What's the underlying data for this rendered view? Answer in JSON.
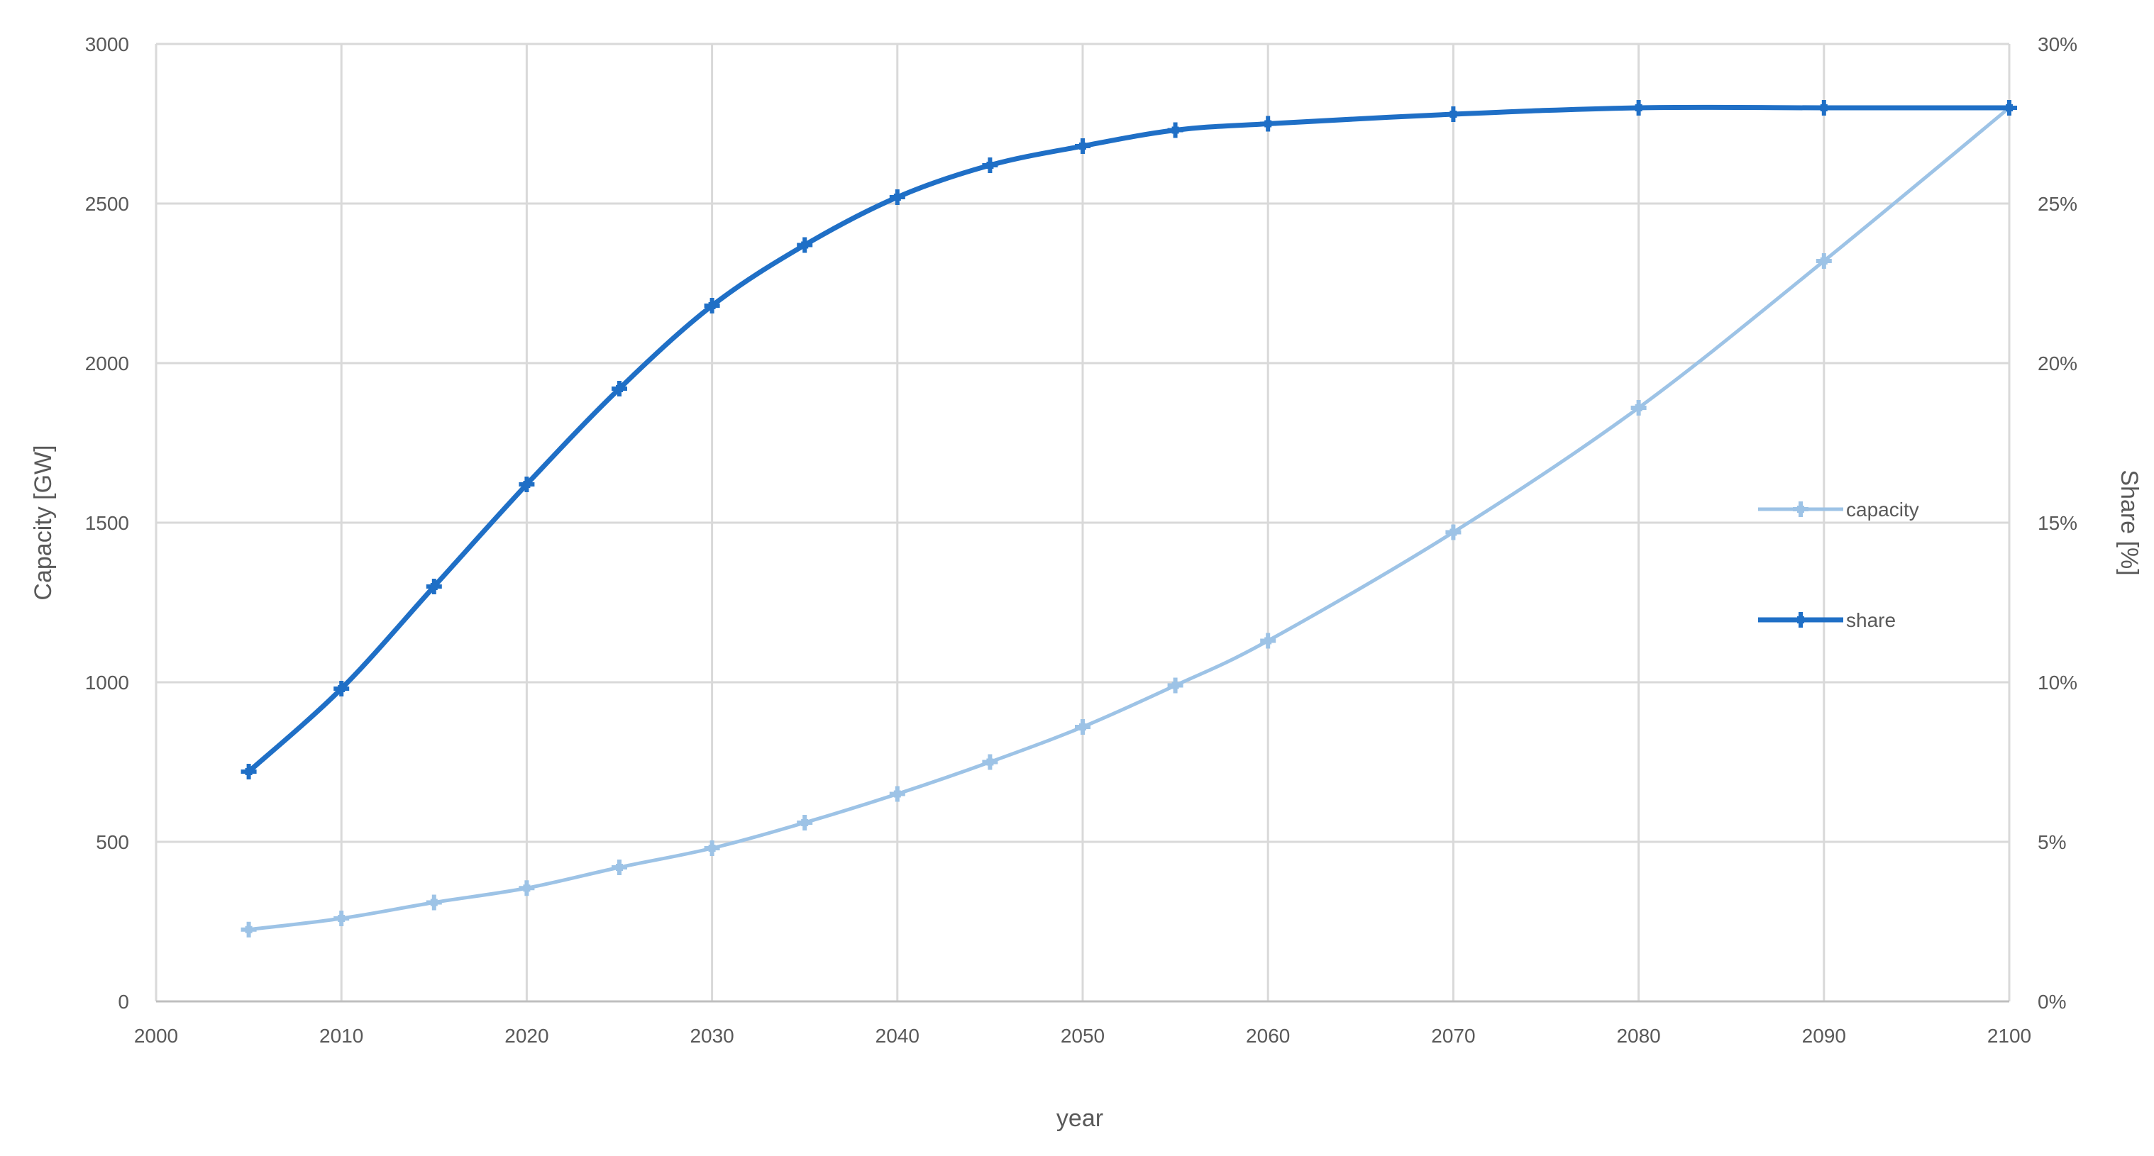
{
  "chart_data": {
    "type": "line",
    "xlabel": "year",
    "ylabel_left": "Capacity [GW]",
    "ylabel_right": "Share [%]",
    "xlim": [
      2000,
      2100
    ],
    "ylim_left": [
      0,
      3000
    ],
    "ylim_right": [
      0,
      30
    ],
    "grid": true,
    "x_ticks": [
      "2000",
      "2010",
      "2020",
      "2030",
      "2040",
      "2050",
      "2060",
      "2070",
      "2080",
      "2090",
      "2100"
    ],
    "y_left_ticks": [
      "0",
      "500",
      "1000",
      "1500",
      "2000",
      "2500",
      "3000"
    ],
    "y_right_ticks": [
      "0%",
      "5%",
      "10%",
      "15%",
      "20%",
      "25%",
      "30%"
    ],
    "legend_position": "right",
    "series": [
      {
        "name": "capacity",
        "axis": "left",
        "color": "#9DC3E6",
        "marker": "cross",
        "x": [
          2005,
          2010,
          2015,
          2020,
          2025,
          2030,
          2035,
          2040,
          2045,
          2050,
          2055,
          2060,
          2070,
          2080,
          2090,
          2100
        ],
        "values": [
          225,
          260,
          310,
          355,
          420,
          480,
          560,
          650,
          750,
          860,
          990,
          1130,
          1470,
          1860,
          2320,
          2800
        ]
      },
      {
        "name": "share",
        "axis": "right",
        "color": "#1F6FC6",
        "marker": "cross",
        "x": [
          2005,
          2010,
          2015,
          2020,
          2025,
          2030,
          2035,
          2040,
          2045,
          2050,
          2055,
          2060,
          2070,
          2080,
          2090,
          2100
        ],
        "values": [
          7.2,
          9.8,
          13.0,
          16.2,
          19.2,
          21.8,
          23.7,
          25.2,
          26.2,
          26.8,
          27.3,
          27.5,
          27.8,
          28.0,
          28.0,
          28.0
        ]
      }
    ]
  }
}
